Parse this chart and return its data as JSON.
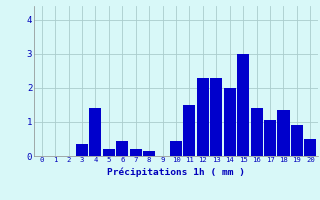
{
  "categories": [
    0,
    1,
    2,
    3,
    4,
    5,
    6,
    7,
    8,
    9,
    10,
    11,
    12,
    13,
    14,
    15,
    16,
    17,
    18,
    19,
    20
  ],
  "values": [
    0,
    0,
    0,
    0.35,
    1.4,
    0.2,
    0.45,
    0.2,
    0.15,
    0,
    0.45,
    1.5,
    2.3,
    2.3,
    2.0,
    3.0,
    1.4,
    1.05,
    1.35,
    0.9,
    0.5
  ],
  "bar_color": "#0000cc",
  "background_color": "#d8f8f8",
  "grid_color": "#aacccc",
  "xlabel": "Précipitations 1h ( mm )",
  "xlabel_color": "#0000bb",
  "tick_color": "#0000bb",
  "ylim": [
    0,
    4.4
  ],
  "yticks": [
    0,
    1,
    2,
    3,
    4
  ],
  "figsize": [
    3.2,
    2.0
  ],
  "dpi": 100
}
